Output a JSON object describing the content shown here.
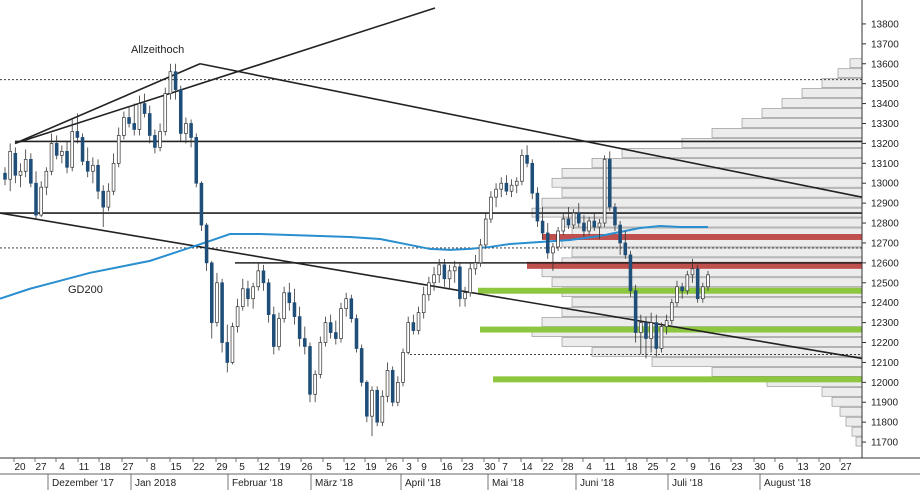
{
  "chart_data": {
    "type": "candlestick",
    "title": "",
    "xlabel": "",
    "ylabel": "",
    "ylim": [
      11620,
      13880
    ],
    "y_ticks": [
      11700,
      11800,
      11900,
      12000,
      12100,
      12200,
      12300,
      12400,
      12500,
      12600,
      12700,
      12800,
      12900,
      13000,
      13100,
      13200,
      13300,
      13400,
      13500,
      13600,
      13700,
      13800
    ],
    "x_day_labels": [
      "20",
      "27",
      "4",
      "11",
      "18",
      "27",
      "8",
      "15",
      "22",
      "29",
      "5",
      "12",
      "19",
      "26",
      "5",
      "12",
      "19",
      "26",
      "3",
      "9",
      "16",
      "23",
      "30",
      "7",
      "14",
      "22",
      "28",
      "4",
      "11",
      "18",
      "25",
      "2",
      "9",
      "16",
      "23",
      "30",
      "6",
      "13",
      "20",
      "27"
    ],
    "x_month_labels": [
      "Dezember '17",
      "Jan 2018",
      "Februar '18",
      "März '18",
      "April '18",
      "Mai '18",
      "Juni '18",
      "Juli '18",
      "August '18"
    ],
    "annotations": [
      "Allzeithoch",
      "GD200"
    ],
    "candles": [
      {
        "o": 13050,
        "h": 13080,
        "l": 12990,
        "c": 13020
      },
      {
        "o": 13020,
        "h": 13200,
        "l": 12960,
        "c": 13160
      },
      {
        "o": 13150,
        "h": 13180,
        "l": 13000,
        "c": 13040
      },
      {
        "o": 13040,
        "h": 13100,
        "l": 12980,
        "c": 13060
      },
      {
        "o": 13060,
        "h": 13170,
        "l": 13030,
        "c": 13120
      },
      {
        "o": 13120,
        "h": 13150,
        "l": 12980,
        "c": 13000
      },
      {
        "o": 13000,
        "h": 13060,
        "l": 12820,
        "c": 12840
      },
      {
        "o": 12840,
        "h": 13010,
        "l": 12830,
        "c": 12980
      },
      {
        "o": 12980,
        "h": 13080,
        "l": 12940,
        "c": 13060
      },
      {
        "o": 13060,
        "h": 13250,
        "l": 13040,
        "c": 13200
      },
      {
        "o": 13200,
        "h": 13240,
        "l": 13120,
        "c": 13140
      },
      {
        "o": 13140,
        "h": 13190,
        "l": 13100,
        "c": 13160
      },
      {
        "o": 13160,
        "h": 13210,
        "l": 13050,
        "c": 13080
      },
      {
        "o": 13080,
        "h": 13320,
        "l": 13060,
        "c": 13260
      },
      {
        "o": 13260,
        "h": 13350,
        "l": 13200,
        "c": 13230
      },
      {
        "o": 13230,
        "h": 13250,
        "l": 13090,
        "c": 13110
      },
      {
        "o": 13110,
        "h": 13180,
        "l": 13030,
        "c": 13060
      },
      {
        "o": 13060,
        "h": 13130,
        "l": 13000,
        "c": 13090
      },
      {
        "o": 13090,
        "h": 13120,
        "l": 12920,
        "c": 12960
      },
      {
        "o": 12960,
        "h": 12990,
        "l": 12780,
        "c": 12880
      },
      {
        "o": 12880,
        "h": 13000,
        "l": 12860,
        "c": 12960
      },
      {
        "o": 12960,
        "h": 13150,
        "l": 12940,
        "c": 13100
      },
      {
        "o": 13100,
        "h": 13280,
        "l": 13080,
        "c": 13240
      },
      {
        "o": 13240,
        "h": 13360,
        "l": 13220,
        "c": 13330
      },
      {
        "o": 13330,
        "h": 13380,
        "l": 13280,
        "c": 13300
      },
      {
        "o": 13300,
        "h": 13400,
        "l": 13240,
        "c": 13270
      },
      {
        "o": 13270,
        "h": 13440,
        "l": 13240,
        "c": 13400
      },
      {
        "o": 13400,
        "h": 13450,
        "l": 13330,
        "c": 13350
      },
      {
        "o": 13350,
        "h": 13390,
        "l": 13200,
        "c": 13240
      },
      {
        "o": 13240,
        "h": 13270,
        "l": 13150,
        "c": 13180
      },
      {
        "o": 13180,
        "h": 13300,
        "l": 13160,
        "c": 13260
      },
      {
        "o": 13260,
        "h": 13480,
        "l": 13240,
        "c": 13450
      },
      {
        "o": 13450,
        "h": 13600,
        "l": 13420,
        "c": 13560
      },
      {
        "o": 13560,
        "h": 13600,
        "l": 13420,
        "c": 13470
      },
      {
        "o": 13470,
        "h": 13490,
        "l": 13210,
        "c": 13250
      },
      {
        "o": 13250,
        "h": 13330,
        "l": 13200,
        "c": 13300
      },
      {
        "o": 13300,
        "h": 13320,
        "l": 13180,
        "c": 13230
      },
      {
        "o": 13230,
        "h": 13250,
        "l": 12980,
        "c": 13000
      },
      {
        "o": 13000,
        "h": 13010,
        "l": 12760,
        "c": 12790
      },
      {
        "o": 12790,
        "h": 12800,
        "l": 12560,
        "c": 12600
      },
      {
        "o": 12600,
        "h": 12610,
        "l": 12220,
        "c": 12300
      },
      {
        "o": 12300,
        "h": 12550,
        "l": 12280,
        "c": 12500
      },
      {
        "o": 12500,
        "h": 12520,
        "l": 12150,
        "c": 12200
      },
      {
        "o": 12200,
        "h": 12290,
        "l": 12050,
        "c": 12100
      },
      {
        "o": 12100,
        "h": 12300,
        "l": 12090,
        "c": 12280
      },
      {
        "o": 12280,
        "h": 12420,
        "l": 12250,
        "c": 12380
      },
      {
        "o": 12380,
        "h": 12520,
        "l": 12360,
        "c": 12470
      },
      {
        "o": 12470,
        "h": 12510,
        "l": 12380,
        "c": 12420
      },
      {
        "o": 12420,
        "h": 12500,
        "l": 12370,
        "c": 12480
      },
      {
        "o": 12480,
        "h": 12600,
        "l": 12460,
        "c": 12560
      },
      {
        "o": 12560,
        "h": 12590,
        "l": 12460,
        "c": 12500
      },
      {
        "o": 12500,
        "h": 12520,
        "l": 12300,
        "c": 12340
      },
      {
        "o": 12340,
        "h": 12380,
        "l": 12140,
        "c": 12180
      },
      {
        "o": 12180,
        "h": 12350,
        "l": 12160,
        "c": 12320
      },
      {
        "o": 12320,
        "h": 12480,
        "l": 12300,
        "c": 12450
      },
      {
        "o": 12450,
        "h": 12500,
        "l": 12360,
        "c": 12400
      },
      {
        "o": 12400,
        "h": 12470,
        "l": 12290,
        "c": 12330
      },
      {
        "o": 12330,
        "h": 12380,
        "l": 12180,
        "c": 12220
      },
      {
        "o": 12220,
        "h": 12280,
        "l": 12140,
        "c": 12180
      },
      {
        "o": 12180,
        "h": 12200,
        "l": 11900,
        "c": 11940
      },
      {
        "o": 11940,
        "h": 12060,
        "l": 11900,
        "c": 12040
      },
      {
        "o": 12040,
        "h": 12230,
        "l": 12020,
        "c": 12200
      },
      {
        "o": 12200,
        "h": 12330,
        "l": 12180,
        "c": 12300
      },
      {
        "o": 12300,
        "h": 12340,
        "l": 12220,
        "c": 12250
      },
      {
        "o": 12250,
        "h": 12310,
        "l": 12190,
        "c": 12220
      },
      {
        "o": 12220,
        "h": 12400,
        "l": 12200,
        "c": 12370
      },
      {
        "o": 12370,
        "h": 12450,
        "l": 12330,
        "c": 12420
      },
      {
        "o": 12420,
        "h": 12440,
        "l": 12300,
        "c": 12320
      },
      {
        "o": 12320,
        "h": 12340,
        "l": 12150,
        "c": 12170
      },
      {
        "o": 12170,
        "h": 12190,
        "l": 11980,
        "c": 12000
      },
      {
        "o": 12000,
        "h": 12010,
        "l": 11800,
        "c": 11830
      },
      {
        "o": 11830,
        "h": 11980,
        "l": 11730,
        "c": 11960
      },
      {
        "o": 11960,
        "h": 11980,
        "l": 11780,
        "c": 11800
      },
      {
        "o": 11800,
        "h": 11960,
        "l": 11780,
        "c": 11930
      },
      {
        "o": 11930,
        "h": 12100,
        "l": 11900,
        "c": 12060
      },
      {
        "o": 12060,
        "h": 12080,
        "l": 11880,
        "c": 11900
      },
      {
        "o": 11900,
        "h": 12030,
        "l": 11880,
        "c": 12000
      },
      {
        "o": 12000,
        "h": 12170,
        "l": 11980,
        "c": 12150
      },
      {
        "o": 12150,
        "h": 12330,
        "l": 12140,
        "c": 12300
      },
      {
        "o": 12300,
        "h": 12340,
        "l": 12240,
        "c": 12260
      },
      {
        "o": 12260,
        "h": 12380,
        "l": 12240,
        "c": 12350
      },
      {
        "o": 12350,
        "h": 12480,
        "l": 12320,
        "c": 12440
      },
      {
        "o": 12440,
        "h": 12530,
        "l": 12410,
        "c": 12500
      },
      {
        "o": 12500,
        "h": 12580,
        "l": 12460,
        "c": 12540
      },
      {
        "o": 12540,
        "h": 12620,
        "l": 12500,
        "c": 12590
      },
      {
        "o": 12590,
        "h": 12620,
        "l": 12480,
        "c": 12520
      },
      {
        "o": 12520,
        "h": 12590,
        "l": 12470,
        "c": 12560
      },
      {
        "o": 12560,
        "h": 12610,
        "l": 12500,
        "c": 12580
      },
      {
        "o": 12580,
        "h": 12600,
        "l": 12380,
        "c": 12420
      },
      {
        "o": 12420,
        "h": 12480,
        "l": 12380,
        "c": 12450
      },
      {
        "o": 12450,
        "h": 12600,
        "l": 12430,
        "c": 12570
      },
      {
        "o": 12570,
        "h": 12640,
        "l": 12540,
        "c": 12600
      },
      {
        "o": 12600,
        "h": 12720,
        "l": 12580,
        "c": 12690
      },
      {
        "o": 12690,
        "h": 12850,
        "l": 12670,
        "c": 12820
      },
      {
        "o": 12820,
        "h": 12960,
        "l": 12800,
        "c": 12930
      },
      {
        "o": 12930,
        "h": 13000,
        "l": 12880,
        "c": 12970
      },
      {
        "o": 12970,
        "h": 13030,
        "l": 12930,
        "c": 13000
      },
      {
        "o": 13000,
        "h": 13040,
        "l": 12940,
        "c": 12960
      },
      {
        "o": 12960,
        "h": 13020,
        "l": 12930,
        "c": 12990
      },
      {
        "o": 12990,
        "h": 13030,
        "l": 12950,
        "c": 13010
      },
      {
        "o": 13010,
        "h": 13170,
        "l": 12990,
        "c": 13140
      },
      {
        "o": 13140,
        "h": 13190,
        "l": 13080,
        "c": 13100
      },
      {
        "o": 13100,
        "h": 13120,
        "l": 12920,
        "c": 12950
      },
      {
        "o": 12950,
        "h": 12980,
        "l": 12780,
        "c": 12810
      },
      {
        "o": 12810,
        "h": 12880,
        "l": 12720,
        "c": 12750
      },
      {
        "o": 12750,
        "h": 12800,
        "l": 12620,
        "c": 12650
      },
      {
        "o": 12650,
        "h": 12700,
        "l": 12560,
        "c": 12680
      },
      {
        "o": 12680,
        "h": 12780,
        "l": 12660,
        "c": 12760
      },
      {
        "o": 12760,
        "h": 12850,
        "l": 12740,
        "c": 12820
      },
      {
        "o": 12820,
        "h": 12880,
        "l": 12770,
        "c": 12790
      },
      {
        "o": 12790,
        "h": 12870,
        "l": 12770,
        "c": 12850
      },
      {
        "o": 12850,
        "h": 12900,
        "l": 12780,
        "c": 12800
      },
      {
        "o": 12800,
        "h": 12840,
        "l": 12730,
        "c": 12760
      },
      {
        "o": 12760,
        "h": 12830,
        "l": 12740,
        "c": 12810
      },
      {
        "o": 12810,
        "h": 12850,
        "l": 12760,
        "c": 12780
      },
      {
        "o": 12780,
        "h": 12820,
        "l": 12720,
        "c": 12800
      },
      {
        "o": 12800,
        "h": 13140,
        "l": 12780,
        "c": 13120
      },
      {
        "o": 13120,
        "h": 13160,
        "l": 12860,
        "c": 12880
      },
      {
        "o": 12880,
        "h": 12900,
        "l": 12760,
        "c": 12790
      },
      {
        "o": 12790,
        "h": 12810,
        "l": 12640,
        "c": 12700
      },
      {
        "o": 12700,
        "h": 12760,
        "l": 12620,
        "c": 12640
      },
      {
        "o": 12640,
        "h": 12660,
        "l": 12430,
        "c": 12460
      },
      {
        "o": 12460,
        "h": 12490,
        "l": 12200,
        "c": 12250
      },
      {
        "o": 12250,
        "h": 12340,
        "l": 12140,
        "c": 12300
      },
      {
        "o": 12300,
        "h": 12330,
        "l": 12120,
        "c": 12220
      },
      {
        "o": 12220,
        "h": 12350,
        "l": 12150,
        "c": 12300
      },
      {
        "o": 12300,
        "h": 12340,
        "l": 12130,
        "c": 12170
      },
      {
        "o": 12170,
        "h": 12300,
        "l": 12150,
        "c": 12280
      },
      {
        "o": 12280,
        "h": 12340,
        "l": 12240,
        "c": 12310
      },
      {
        "o": 12310,
        "h": 12420,
        "l": 12290,
        "c": 12400
      },
      {
        "o": 12400,
        "h": 12510,
        "l": 12380,
        "c": 12480
      },
      {
        "o": 12480,
        "h": 12500,
        "l": 12420,
        "c": 12460
      },
      {
        "o": 12460,
        "h": 12560,
        "l": 12440,
        "c": 12540
      },
      {
        "o": 12540,
        "h": 12620,
        "l": 12500,
        "c": 12570
      },
      {
        "o": 12570,
        "h": 12590,
        "l": 12400,
        "c": 12420
      },
      {
        "o": 12420,
        "h": 12500,
        "l": 12400,
        "c": 12480
      },
      {
        "o": 12480,
        "h": 12560,
        "l": 12460,
        "c": 12540
      }
    ],
    "gd200": [
      [
        0,
        12420
      ],
      [
        30,
        12470
      ],
      [
        60,
        12510
      ],
      [
        90,
        12550
      ],
      [
        120,
        12580
      ],
      [
        150,
        12610
      ],
      [
        180,
        12660
      ],
      [
        210,
        12710
      ],
      [
        230,
        12745
      ],
      [
        260,
        12745
      ],
      [
        290,
        12740
      ],
      [
        320,
        12735
      ],
      [
        350,
        12730
      ],
      [
        380,
        12720
      ],
      [
        410,
        12690
      ],
      [
        430,
        12670
      ],
      [
        450,
        12665
      ],
      [
        470,
        12670
      ],
      [
        490,
        12680
      ],
      [
        510,
        12695
      ],
      [
        540,
        12705
      ],
      [
        570,
        12715
      ],
      [
        600,
        12735
      ],
      [
        620,
        12755
      ],
      [
        640,
        12775
      ],
      [
        660,
        12785
      ],
      [
        680,
        12780
      ],
      [
        708,
        12780
      ]
    ],
    "trend_lines": [
      {
        "x1": 15,
        "y1": 13200,
        "x2": 435,
        "y2": 13880
      },
      {
        "x1": 15,
        "y1": 13200,
        "x2": 200,
        "y2": 13600
      },
      {
        "x1": 200,
        "y1": 13600,
        "x2": 862,
        "y2": 12930
      },
      {
        "x1": 0,
        "y1": 12850,
        "x2": 862,
        "y2": 12120
      }
    ],
    "horizontal_lines": [
      {
        "y": 13210,
        "x1": 15,
        "x2": 862,
        "style": "solid"
      },
      {
        "y": 12850,
        "x1": 0,
        "x2": 862,
        "style": "solid"
      },
      {
        "y": 12600,
        "x1": 235,
        "x2": 862,
        "style": "solid"
      },
      {
        "y": 13520,
        "x1": 0,
        "x2": 862,
        "style": "dotted"
      },
      {
        "y": 12675,
        "x1": 0,
        "x2": 862,
        "style": "dotted"
      },
      {
        "y": 12140,
        "x1": 410,
        "x2": 862,
        "style": "dotted"
      }
    ],
    "zones": [
      {
        "y_low": 12715,
        "y_high": 12745,
        "x1": 542,
        "x2": 862,
        "color": "#c0504d"
      },
      {
        "y_low": 12570,
        "y_high": 12605,
        "x1": 527,
        "x2": 862,
        "color": "#c0504d"
      },
      {
        "y_low": 12445,
        "y_high": 12475,
        "x1": 478,
        "x2": 862,
        "color": "#8dc63f"
      },
      {
        "y_low": 12250,
        "y_high": 12280,
        "x1": 480,
        "x2": 862,
        "color": "#8dc63f"
      },
      {
        "y_low": 12000,
        "y_high": 12030,
        "x1": 493,
        "x2": 862,
        "color": "#8dc63f"
      }
    ],
    "volume_profile_bins": [
      {
        "y": 11700,
        "w": 6
      },
      {
        "y": 11750,
        "w": 10
      },
      {
        "y": 11800,
        "w": 16
      },
      {
        "y": 11850,
        "w": 22
      },
      {
        "y": 11900,
        "w": 30
      },
      {
        "y": 11950,
        "w": 40
      },
      {
        "y": 12000,
        "w": 95
      },
      {
        "y": 12050,
        "w": 150
      },
      {
        "y": 12100,
        "w": 210
      },
      {
        "y": 12150,
        "w": 270
      },
      {
        "y": 12200,
        "w": 300
      },
      {
        "y": 12250,
        "w": 330
      },
      {
        "y": 12300,
        "w": 320
      },
      {
        "y": 12350,
        "w": 300
      },
      {
        "y": 12400,
        "w": 290
      },
      {
        "y": 12450,
        "w": 300
      },
      {
        "y": 12500,
        "w": 310
      },
      {
        "y": 12550,
        "w": 320
      },
      {
        "y": 12600,
        "w": 300
      },
      {
        "y": 12650,
        "w": 290
      },
      {
        "y": 12700,
        "w": 300
      },
      {
        "y": 12750,
        "w": 290
      },
      {
        "y": 12800,
        "w": 300
      },
      {
        "y": 12850,
        "w": 330
      },
      {
        "y": 12900,
        "w": 320
      },
      {
        "y": 12950,
        "w": 300
      },
      {
        "y": 13000,
        "w": 310
      },
      {
        "y": 13050,
        "w": 300
      },
      {
        "y": 13100,
        "w": 270
      },
      {
        "y": 13150,
        "w": 240
      },
      {
        "y": 13200,
        "w": 180
      },
      {
        "y": 13250,
        "w": 150
      },
      {
        "y": 13300,
        "w": 120
      },
      {
        "y": 13350,
        "w": 100
      },
      {
        "y": 13400,
        "w": 80
      },
      {
        "y": 13450,
        "w": 60
      },
      {
        "y": 13500,
        "w": 40
      },
      {
        "y": 13550,
        "w": 24
      },
      {
        "y": 13600,
        "w": 12
      }
    ],
    "colors": {
      "up": "#ffffff",
      "down": "#1f4e79",
      "wick": "#333333",
      "gd200": "#2a8fd0",
      "trend": "#222222",
      "profile_fill": "#ececec",
      "profile_stroke": "#888888",
      "grid": "#444444"
    }
  }
}
